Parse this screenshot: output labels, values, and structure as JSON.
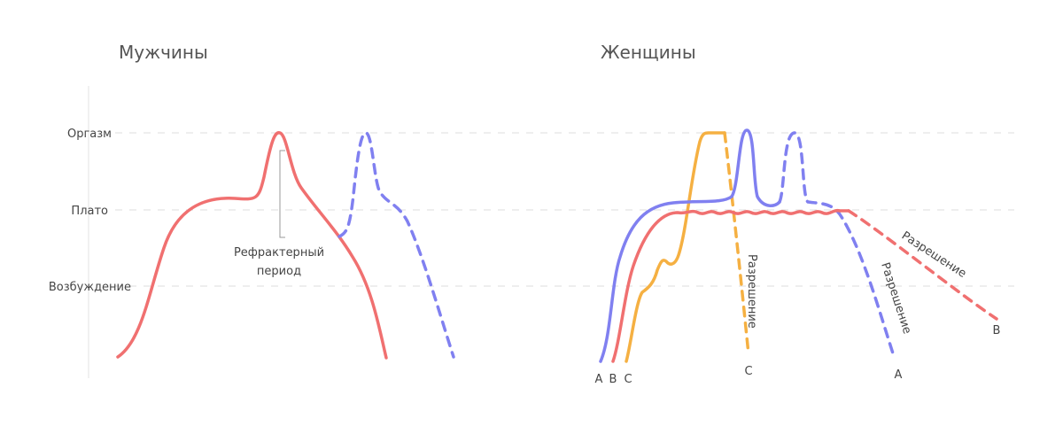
{
  "panels": [
    {
      "title": "Мужчины"
    },
    {
      "title": "Женщины"
    }
  ],
  "levels": [
    "Оргазм",
    "Плато",
    "Возбуждение"
  ],
  "men": {
    "annotation": [
      "Рефрактерный",
      "период"
    ]
  },
  "women": {
    "resolution_labels": [
      "Разрешение",
      "Разрешение",
      "Разрешение"
    ],
    "start_labels": [
      "A",
      "B",
      "C"
    ],
    "end_labels": [
      "C",
      "A",
      "B"
    ]
  }
}
